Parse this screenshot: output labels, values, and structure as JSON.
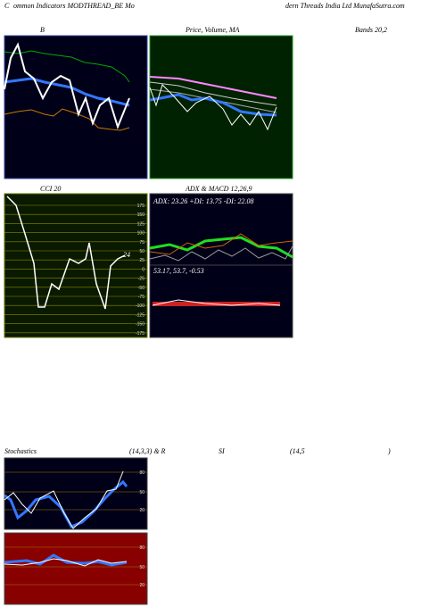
{
  "header": {
    "parts": [
      "C",
      "ommon Indicators MODTHREAD_BE Mo",
      "dern Threads India Ltd MunafaSutra.com"
    ]
  },
  "panels": {
    "bollinger_title": "B",
    "price_title": "Price, Volume, MA",
    "bands_title": "Bands 20,2",
    "cci_title": "CCI 20",
    "cci_value": "24",
    "cci_ticks": [
      "175",
      "150",
      "125",
      "100",
      "75",
      "50",
      "25",
      "0",
      "-25",
      "-50",
      "-75",
      "-100",
      "-125",
      "-150",
      "-175"
    ],
    "adx_title": "ADX  & MACD 12,26,9",
    "adx_stats": "ADX: 23.26  +DI: 13.75 -DI: 22.08",
    "macd_stats": "53.17,  53.7,  -0.53",
    "stoch_title_parts": [
      "Stochastics",
      "(14,3,3) & R",
      "SI",
      "(14,5",
      ")"
    ],
    "stoch_ticks": [
      "80",
      "50",
      "20"
    ],
    "rsi_ticks": [
      "80",
      "50",
      "20"
    ]
  },
  "watermark": "MunafaSutra.com"
}
